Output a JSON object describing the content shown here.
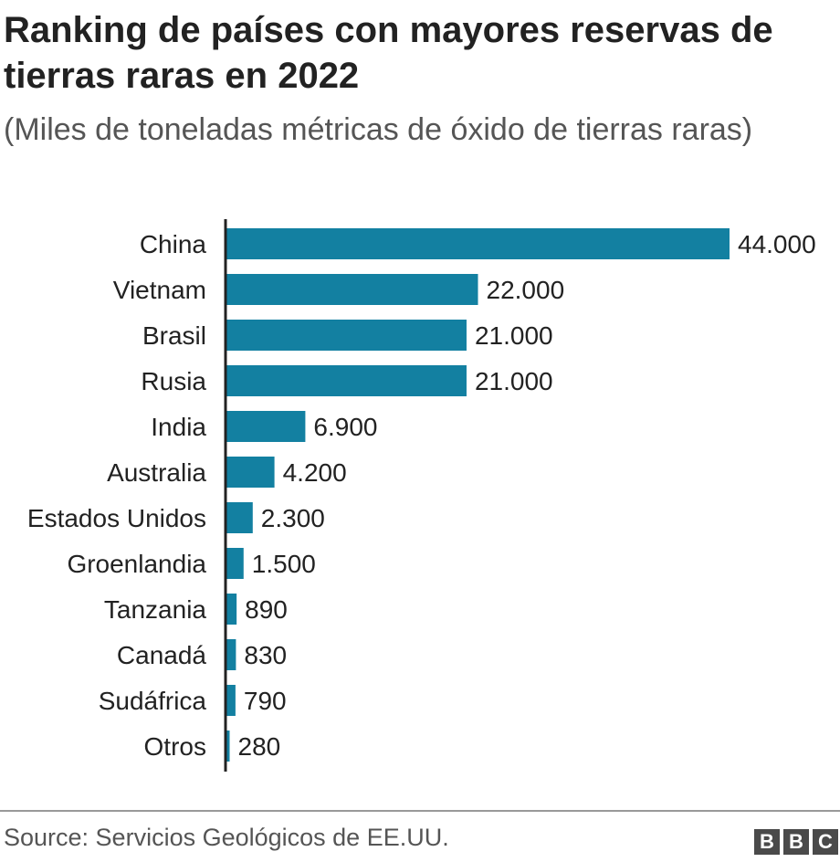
{
  "chart_data": {
    "type": "bar",
    "orientation": "horizontal",
    "title": "Ranking de países con mayores reservas de tierras raras en 2022",
    "subtitle": "(Miles de toneladas métricas de óxido de tierras raras)",
    "categories": [
      "China",
      "Vietnam",
      "Brasil",
      "Rusia",
      "India",
      "Australia",
      "Estados Unidos",
      "Groenlandia",
      "Tanzania",
      "Canadá",
      "Sudáfrica",
      "Otros"
    ],
    "values": [
      44000,
      22000,
      21000,
      21000,
      6900,
      4200,
      2300,
      1500,
      890,
      830,
      790,
      280
    ],
    "value_labels": [
      "44.000",
      "22.000",
      "21.000",
      "21.000",
      "6.900",
      "4.200",
      "2.300",
      "1.500",
      "890",
      "830",
      "790",
      "280"
    ],
    "xlim": [
      0,
      44000
    ],
    "grid": false,
    "legend": "none",
    "bar_color": "#1380a1"
  },
  "footer": {
    "source": "Source: Servicios Geológicos de EE.UU.",
    "logo": [
      "B",
      "B",
      "C"
    ]
  }
}
